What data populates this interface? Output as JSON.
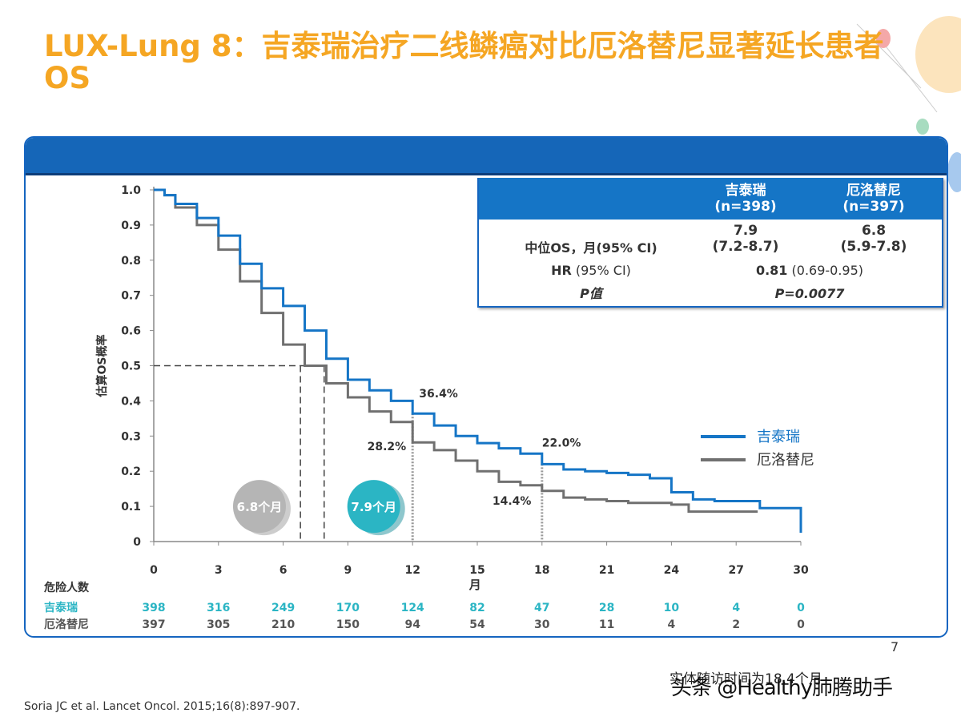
{
  "title": "LUX-Lung 8：吉泰瑞治疗二线鳞癌对比厄洛替尼显著延长患者OS",
  "colors": {
    "accent": "#f5a623",
    "blue": "#1575c6",
    "gray": "#707070",
    "teal": "#2bb5c4"
  },
  "table": {
    "col1_header": "吉泰瑞\n(n=398)",
    "col2_header": "厄洛替尼\n(n=397)",
    "row1_label": "中位OS，月(95% CI)",
    "row1_val1": "7.9\n(7.2-8.7)",
    "row1_val2": "6.8\n(5.9-7.8)",
    "row2_label": "HR",
    "row2_label_suffix": " (95% CI)",
    "row2_value": "0.81",
    "row2_value_suffix": " (0.69-0.95)",
    "row3_label": "P值",
    "row3_value": "P=0.0077"
  },
  "chart_data": {
    "type": "line",
    "title": "",
    "xlabel": "月",
    "ylabel": "估算OS概率",
    "xlim": [
      0,
      30
    ],
    "ylim": [
      0,
      1
    ],
    "x_ticks": [
      0,
      3,
      6,
      9,
      12,
      15,
      18,
      21,
      24,
      27,
      30
    ],
    "y_ticks": [
      "0",
      "0.1",
      "0.2",
      "0.3",
      "0.4",
      "0.5",
      "0.6",
      "0.7",
      "0.8",
      "0.9",
      "1.0"
    ],
    "series": [
      {
        "name": "吉泰瑞",
        "color": "#1575c6",
        "points": [
          [
            0,
            1.0
          ],
          [
            0.5,
            0.985
          ],
          [
            1,
            0.96
          ],
          [
            2,
            0.92
          ],
          [
            3,
            0.87
          ],
          [
            4,
            0.79
          ],
          [
            5,
            0.72
          ],
          [
            6,
            0.67
          ],
          [
            7,
            0.6
          ],
          [
            8,
            0.52
          ],
          [
            9,
            0.46
          ],
          [
            10,
            0.43
          ],
          [
            11,
            0.4
          ],
          [
            12,
            0.364
          ],
          [
            13,
            0.33
          ],
          [
            14,
            0.3
          ],
          [
            15,
            0.28
          ],
          [
            16,
            0.265
          ],
          [
            17,
            0.25
          ],
          [
            18,
            0.22
          ],
          [
            19,
            0.205
          ],
          [
            20,
            0.2
          ],
          [
            21,
            0.195
          ],
          [
            22,
            0.19
          ],
          [
            23,
            0.18
          ],
          [
            24,
            0.14
          ],
          [
            25,
            0.12
          ],
          [
            26,
            0.115
          ],
          [
            27,
            0.115
          ],
          [
            28,
            0.115
          ],
          [
            28.1,
            0.095
          ],
          [
            29,
            0.095
          ],
          [
            30,
            0.095
          ],
          [
            30,
            0.025
          ]
        ]
      },
      {
        "name": "厄洛替尼",
        "color": "#707070",
        "points": [
          [
            0,
            1.0
          ],
          [
            0.5,
            0.985
          ],
          [
            1,
            0.95
          ],
          [
            2,
            0.9
          ],
          [
            3,
            0.83
          ],
          [
            4,
            0.74
          ],
          [
            5,
            0.65
          ],
          [
            6,
            0.56
          ],
          [
            7,
            0.5
          ],
          [
            8,
            0.45
          ],
          [
            9,
            0.41
          ],
          [
            10,
            0.37
          ],
          [
            11,
            0.34
          ],
          [
            12,
            0.282
          ],
          [
            13,
            0.26
          ],
          [
            14,
            0.23
          ],
          [
            15,
            0.2
          ],
          [
            16,
            0.17
          ],
          [
            17,
            0.16
          ],
          [
            18,
            0.144
          ],
          [
            19,
            0.125
          ],
          [
            20,
            0.12
          ],
          [
            21,
            0.115
          ],
          [
            22,
            0.11
          ],
          [
            23,
            0.11
          ],
          [
            24,
            0.105
          ],
          [
            24.8,
            0.085
          ],
          [
            26,
            0.085
          ],
          [
            27,
            0.085
          ],
          [
            28,
            0.085
          ]
        ]
      }
    ],
    "median_lines": [
      {
        "x": 6.8,
        "y": 0.5
      },
      {
        "x": 7.9,
        "y": 0.5
      }
    ],
    "timepoint_lines": [
      {
        "x": 12,
        "blue": 0.364,
        "gray": 0.282
      },
      {
        "x": 18,
        "blue": 0.22,
        "gray": 0.144
      }
    ],
    "annotations": [
      {
        "text": "36.4%",
        "x": 12.3,
        "y": 0.41
      },
      {
        "text": "28.2%",
        "x": 9.9,
        "y": 0.26
      },
      {
        "text": "22.0%",
        "x": 18.0,
        "y": 0.27
      },
      {
        "text": "14.4%",
        "x": 15.7,
        "y": 0.105
      }
    ],
    "badges": [
      {
        "text": "6.8个月",
        "color": "#b5b5b5"
      },
      {
        "text": "7.9个月",
        "color": "#2bb5c4"
      }
    ],
    "legend": {
      "position": "right",
      "entries": [
        "吉泰瑞",
        "厄洛替尼"
      ]
    },
    "risk_table": {
      "title": "危险人数",
      "rows": [
        {
          "label": "吉泰瑞",
          "color": "#2bb5c4",
          "values": [
            "398",
            "316",
            "249",
            "170",
            "124",
            "82",
            "47",
            "28",
            "10",
            "4",
            "0"
          ]
        },
        {
          "label": "厄洛替尼",
          "color": "#555555",
          "values": [
            "397",
            "305",
            "210",
            "150",
            "94",
            "54",
            "30",
            "11",
            "4",
            "2",
            "0"
          ]
        }
      ]
    }
  },
  "page_number": "7",
  "footer_note": "实体随访时间为18.4个月",
  "watermark": "头条 @Healthy肺腾助手",
  "source": "Soria JC et al. Lancet Oncol. 2015;16(8):897-907."
}
